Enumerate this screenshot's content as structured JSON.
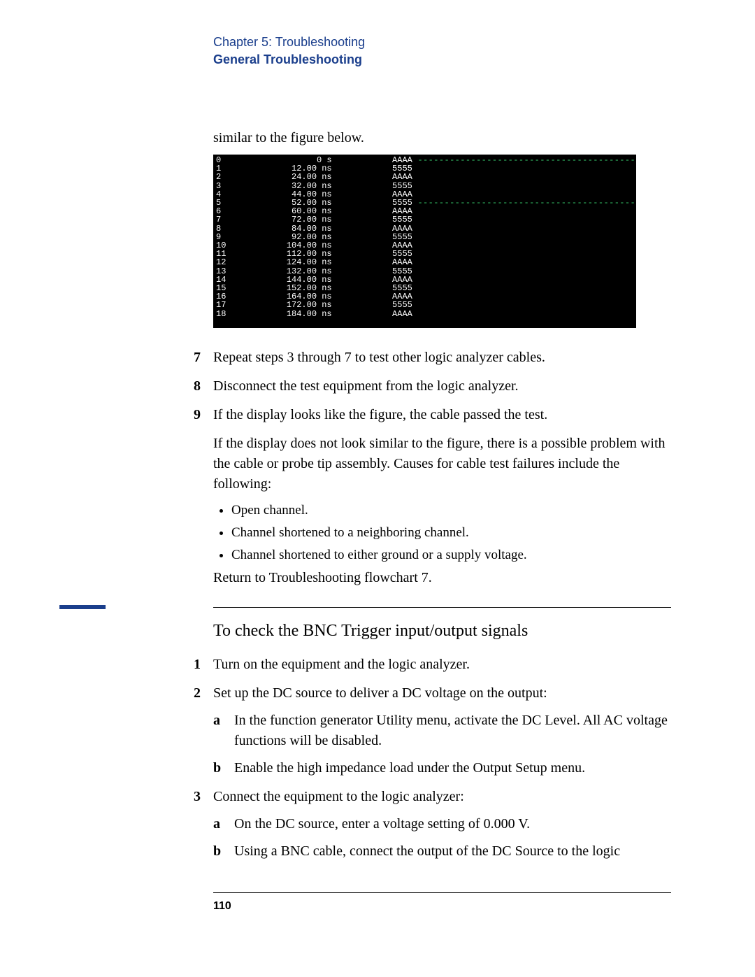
{
  "header": {
    "chapter": "Chapter 5: Troubleshooting",
    "section": "General Troubleshooting"
  },
  "intro": "similar to the figure below.",
  "terminal": {
    "background": "#000000",
    "text_color": "#ffffff",
    "dashed_color": "#38d070",
    "font": "monospace",
    "rows": [
      {
        "idx": "0",
        "time": "0 s",
        "val": "AAAA",
        "dashed": true
      },
      {
        "idx": "1",
        "time": "12.00 ns",
        "val": "5555",
        "dashed": false
      },
      {
        "idx": "2",
        "time": "24.00 ns",
        "val": "AAAA",
        "dashed": false
      },
      {
        "idx": "3",
        "time": "32.00 ns",
        "val": "5555",
        "dashed": false
      },
      {
        "idx": "4",
        "time": "44.00 ns",
        "val": "AAAA",
        "dashed": false
      },
      {
        "idx": "5",
        "time": "52.00 ns",
        "val": "5555",
        "dashed": true
      },
      {
        "idx": "6",
        "time": "60.00 ns",
        "val": "AAAA",
        "dashed": false
      },
      {
        "idx": "7",
        "time": "72.00 ns",
        "val": "5555",
        "dashed": false
      },
      {
        "idx": "8",
        "time": "84.00 ns",
        "val": "AAAA",
        "dashed": false
      },
      {
        "idx": "9",
        "time": "92.00 ns",
        "val": "5555",
        "dashed": false
      },
      {
        "idx": "10",
        "time": "104.00 ns",
        "val": "AAAA",
        "dashed": false
      },
      {
        "idx": "11",
        "time": "112.00 ns",
        "val": "5555",
        "dashed": false
      },
      {
        "idx": "12",
        "time": "124.00 ns",
        "val": "AAAA",
        "dashed": false
      },
      {
        "idx": "13",
        "time": "132.00 ns",
        "val": "5555",
        "dashed": false
      },
      {
        "idx": "14",
        "time": "144.00 ns",
        "val": "AAAA",
        "dashed": false
      },
      {
        "idx": "15",
        "time": "152.00 ns",
        "val": "5555",
        "dashed": false
      },
      {
        "idx": "16",
        "time": "164.00 ns",
        "val": "AAAA",
        "dashed": false
      },
      {
        "idx": "17",
        "time": "172.00 ns",
        "val": "5555",
        "dashed": false
      },
      {
        "idx": "18",
        "time": "184.00 ns",
        "val": "AAAA",
        "dashed": false
      }
    ],
    "col_widths": {
      "idx": 3,
      "time": 20,
      "val": 16
    }
  },
  "steps": [
    {
      "n": "7",
      "text": "Repeat steps 3 through 7 to test other logic analyzer cables."
    },
    {
      "n": "8",
      "text": "Disconnect the test equipment from the logic analyzer."
    },
    {
      "n": "9",
      "text": "If the display looks like the figure, the cable passed the test."
    }
  ],
  "failure_intro": "If the display does not look similar to the figure, there is a possible problem with the cable or probe tip assembly. Causes for cable test failures include the following:",
  "causes": [
    "Open channel.",
    "Channel shortened to a neighboring channel.",
    "Channel shortened to either ground or a supply voltage."
  ],
  "return_text": "Return to Troubleshooting flowchart 7.",
  "section2": {
    "title": "To check the BNC Trigger input/output signals",
    "accent_color": "#1a3e8c",
    "steps": [
      {
        "n": "1",
        "text": "Turn on the equipment and the logic analyzer.",
        "subs": []
      },
      {
        "n": "2",
        "text": "Set up the DC source to deliver a DC voltage on the output:",
        "subs": [
          {
            "l": "a",
            "text": "In the function generator Utility menu, activate the DC Level. All AC voltage functions will be disabled."
          },
          {
            "l": "b",
            "text": "Enable the high impedance load under the Output Setup menu."
          }
        ]
      },
      {
        "n": "3",
        "text": "Connect the equipment to the logic analyzer:",
        "subs": [
          {
            "l": "a",
            "text": "On the DC source, enter a voltage setting of 0.000 V."
          },
          {
            "l": "b",
            "text": "Using a BNC cable, connect the output of the DC Source to the logic"
          }
        ]
      }
    ]
  },
  "page_number": "110"
}
